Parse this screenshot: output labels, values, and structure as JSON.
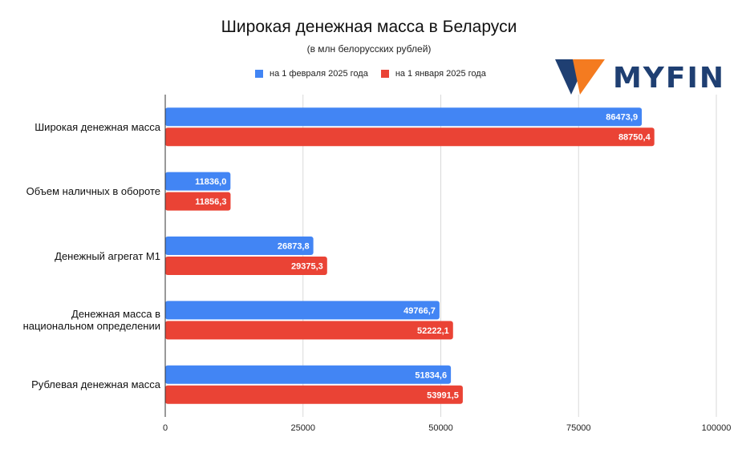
{
  "chart_data": {
    "type": "bar",
    "orientation": "horizontal",
    "title": "Широкая денежная масса в Беларуси",
    "subtitle": "(в млн белорусских рублей)",
    "categories": [
      "Широкая денежная масса",
      "Объем наличных в обороте",
      "Денежный агрегат М1",
      "Денежная масса в национальном определении",
      "Рублевая денежная масса"
    ],
    "series": [
      {
        "name": "на 1 февраля 2025 года",
        "color": "#4285f4",
        "values": [
          86473.9,
          11836.0,
          26873.8,
          49766.7,
          51834.6
        ],
        "labels": [
          "86473,9",
          "11836,0",
          "26873,8",
          "49766,7",
          "51834,6"
        ]
      },
      {
        "name": "на 1 января 2025 года",
        "color": "#ea4335",
        "values": [
          88750.4,
          11856.3,
          29375.3,
          52222.1,
          53991.5
        ],
        "labels": [
          "88750,4",
          "11856,3",
          "29375,3",
          "52222,1",
          "53991,5"
        ]
      }
    ],
    "xlim": [
      0,
      100000
    ],
    "ticks": [
      "0",
      "25000",
      "50000",
      "75000",
      "100000"
    ],
    "tick_values": [
      0,
      25000,
      50000,
      75000,
      100000
    ],
    "grid": true,
    "legend_position": "top"
  },
  "logo": {
    "text": "MYFIN",
    "colors": [
      "#f47b20",
      "#1f3f72"
    ],
    "icon": "myfin-logo-icon"
  }
}
